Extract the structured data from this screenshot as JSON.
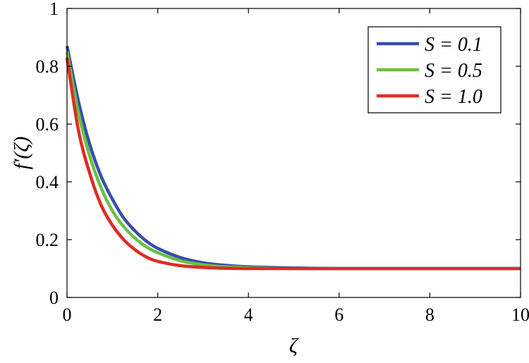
{
  "chart_data": {
    "type": "line",
    "title": "",
    "xlabel": "ζ",
    "ylabel": "f′(ζ)",
    "xlim": [
      0,
      10
    ],
    "ylim": [
      0,
      1
    ],
    "xticks": [
      0,
      2,
      4,
      6,
      8,
      10
    ],
    "yticks": [
      0,
      0.2,
      0.4,
      0.6,
      0.8,
      1
    ],
    "xtick_labels": [
      "0",
      "2",
      "4",
      "6",
      "8",
      "10"
    ],
    "ytick_labels": [
      "0",
      "0.2",
      "0.4",
      "0.6",
      "0.8",
      "1"
    ],
    "grid": false,
    "legend_position": "top-right",
    "series": [
      {
        "name": "S = 0.1",
        "color": "#3450a8",
        "x": [
          0,
          0.25,
          0.5,
          0.75,
          1.0,
          1.25,
          1.5,
          1.75,
          2.0,
          2.5,
          3.0,
          3.5,
          4.0,
          5.0,
          6.0,
          8.0,
          10.0
        ],
        "y": [
          0.87,
          0.68,
          0.53,
          0.42,
          0.34,
          0.275,
          0.23,
          0.195,
          0.17,
          0.138,
          0.12,
          0.111,
          0.106,
          0.102,
          0.1,
          0.1,
          0.1
        ]
      },
      {
        "name": "S = 0.5",
        "color": "#6cbf45",
        "x": [
          0,
          0.25,
          0.5,
          0.75,
          1.0,
          1.25,
          1.5,
          1.75,
          2.0,
          2.5,
          3.0,
          3.5,
          4.0,
          5.0,
          6.0,
          8.0,
          10.0
        ],
        "y": [
          0.85,
          0.64,
          0.49,
          0.38,
          0.3,
          0.245,
          0.205,
          0.175,
          0.155,
          0.127,
          0.113,
          0.106,
          0.103,
          0.1,
          0.1,
          0.1,
          0.1
        ]
      },
      {
        "name": "S = 1.0",
        "color": "#e02b25",
        "x": [
          0,
          0.25,
          0.5,
          0.75,
          1.0,
          1.25,
          1.5,
          1.75,
          2.0,
          2.5,
          3.0,
          3.5,
          4.0,
          5.0,
          6.0,
          8.0,
          10.0
        ],
        "y": [
          0.83,
          0.58,
          0.43,
          0.32,
          0.25,
          0.2,
          0.165,
          0.14,
          0.125,
          0.11,
          0.104,
          0.101,
          0.1,
          0.1,
          0.1,
          0.1,
          0.1
        ]
      }
    ]
  }
}
